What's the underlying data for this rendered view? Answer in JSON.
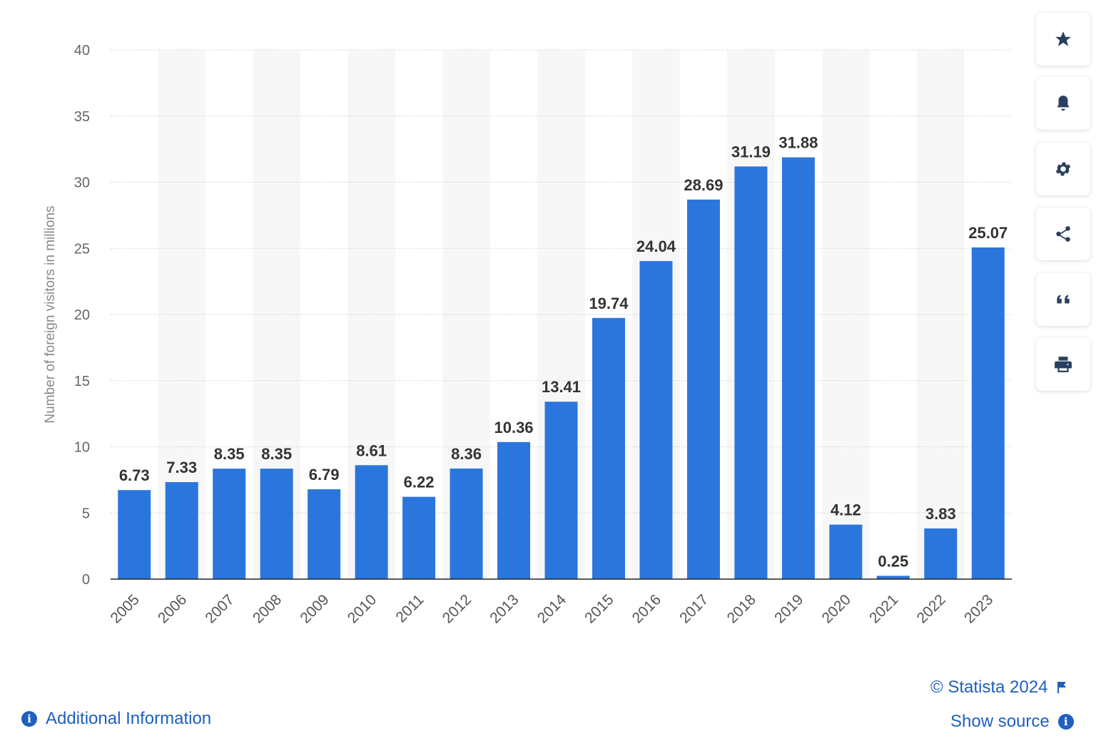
{
  "chart_data": {
    "type": "bar",
    "title": "",
    "xlabel": "",
    "ylabel": "Number of foreign visitors in millions",
    "categories": [
      "2005",
      "2006",
      "2007",
      "2008",
      "2009",
      "2010",
      "2011",
      "2012",
      "2013",
      "2014",
      "2015",
      "2016",
      "2017",
      "2018",
      "2019",
      "2020",
      "2021",
      "2022",
      "2023"
    ],
    "values": [
      6.73,
      7.33,
      8.35,
      8.35,
      6.79,
      8.61,
      6.22,
      8.36,
      10.36,
      13.41,
      19.74,
      24.04,
      28.69,
      31.19,
      31.88,
      4.12,
      0.25,
      3.83,
      25.07
    ],
    "labels": [
      "6.73",
      "7.33",
      "8.35",
      "8.35",
      "6.79",
      "8.61",
      "6.22",
      "8.36",
      "10.36",
      "13.41",
      "19.74",
      "24.04",
      "28.69",
      "31.19",
      "31.88",
      "4.12",
      "0.25",
      "3.83",
      "25.07"
    ],
    "ylim": [
      0,
      40
    ],
    "yticks": [
      0,
      5,
      10,
      15,
      20,
      25,
      30,
      35,
      40
    ],
    "grid": true,
    "bar_color": "#2b76dd"
  },
  "sidebar": {
    "buttons": [
      {
        "name": "favorite",
        "icon": "star-icon"
      },
      {
        "name": "notification",
        "icon": "bell-icon"
      },
      {
        "name": "settings",
        "icon": "gear-icon"
      },
      {
        "name": "share",
        "icon": "share-icon"
      },
      {
        "name": "cite",
        "icon": "quote-icon"
      },
      {
        "name": "print",
        "icon": "print-icon"
      }
    ]
  },
  "footer": {
    "copyright": "© Statista 2024",
    "show_source": "Show source",
    "additional_info": "Additional Information",
    "info_glyph": "i"
  }
}
